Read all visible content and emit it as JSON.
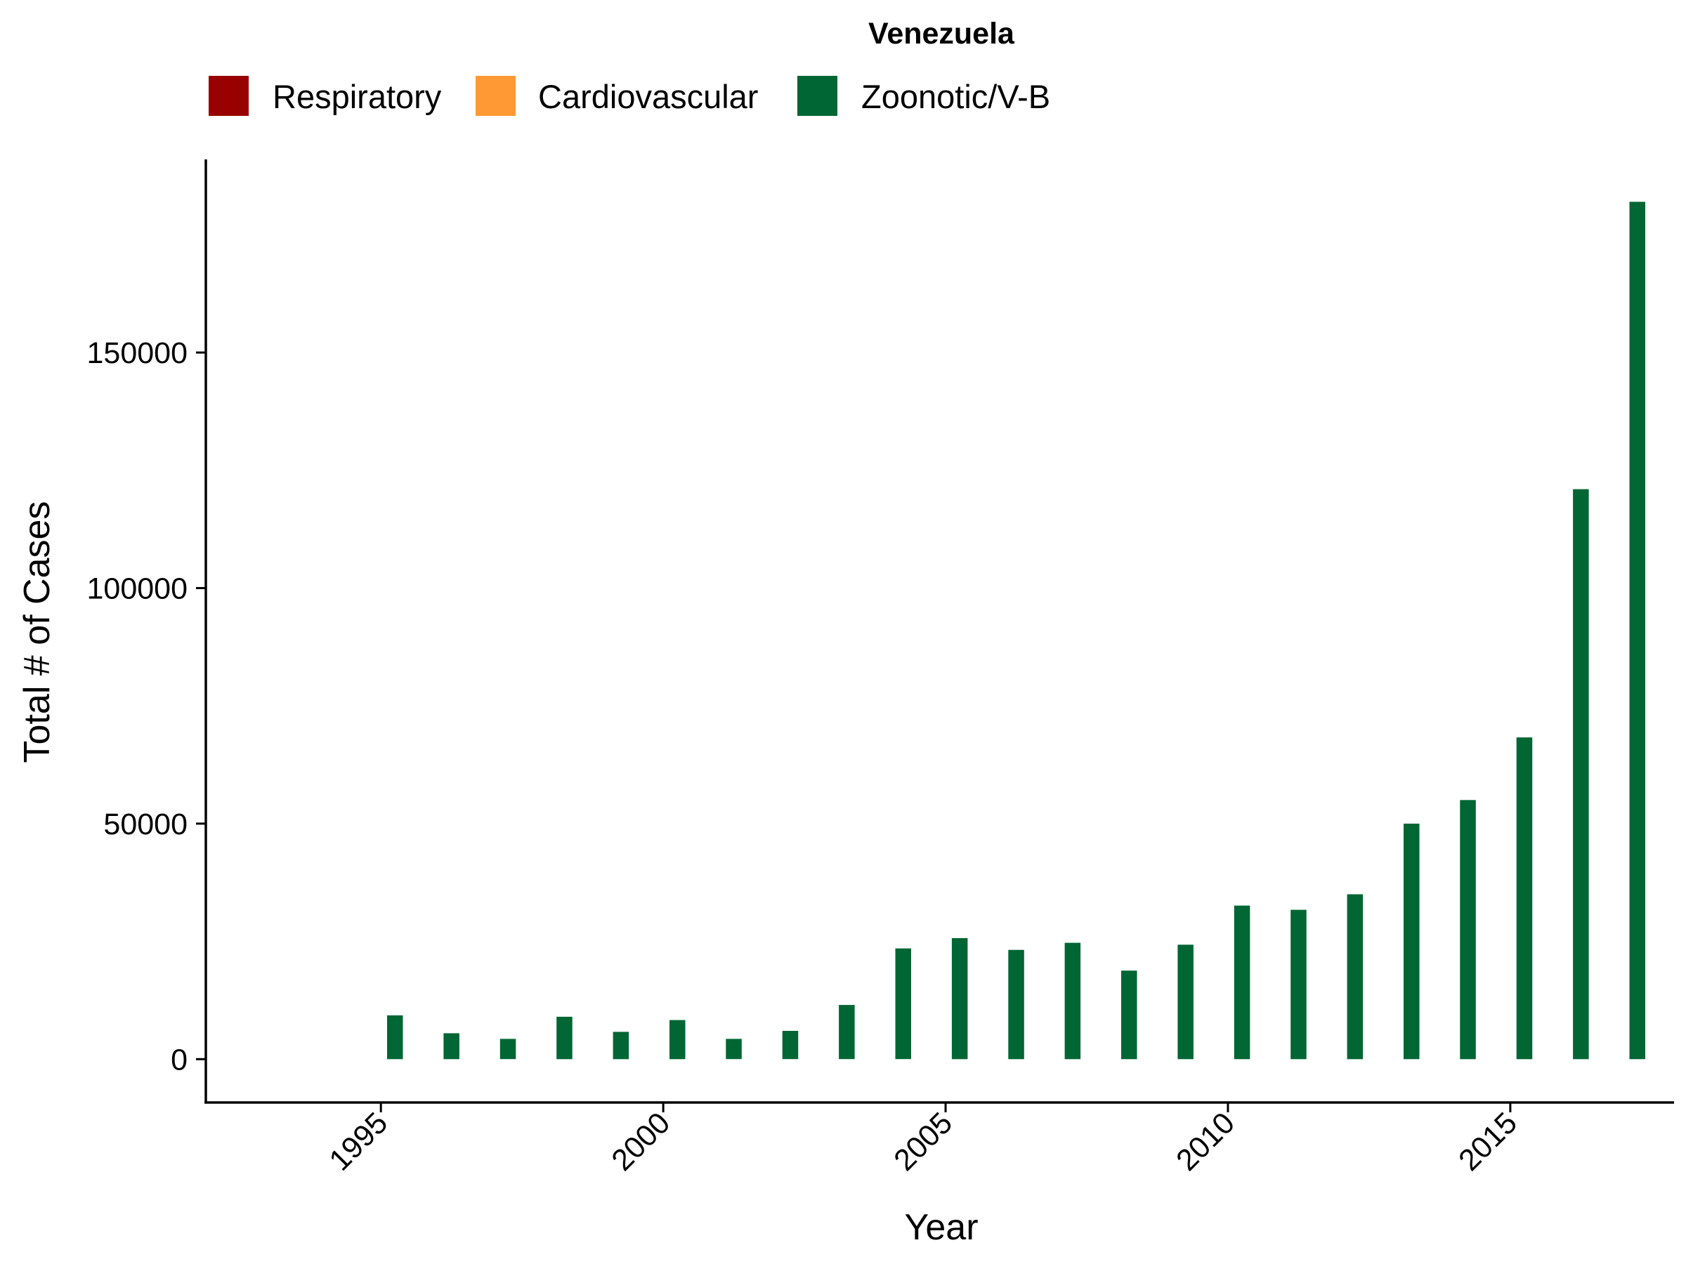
{
  "chart_data": {
    "type": "bar",
    "title": "Venezuela",
    "xlabel": "Year",
    "ylabel": "Total # of Cases",
    "legend_position": "top",
    "legend": [
      {
        "name": "Respiratory",
        "color": "#990000"
      },
      {
        "name": "Cardiovascular",
        "color": "#FF9933"
      },
      {
        "name": "Zoonotic/V-B",
        "color": "#006633"
      }
    ],
    "xlim": [
      1991.9,
      2017.9
    ],
    "ylim": [
      -9200,
      191000
    ],
    "xticks": [
      1995,
      2000,
      2005,
      2010,
      2015
    ],
    "yticks": [
      0,
      50000,
      100000,
      150000
    ],
    "grid": false,
    "series": [
      {
        "name": "Zoonotic/V-B",
        "color": "#006633",
        "x": [
          1995,
          1996,
          1997,
          1998,
          1999,
          2000,
          2001,
          2002,
          2003,
          2004,
          2005,
          2006,
          2007,
          2008,
          2009,
          2010,
          2011,
          2012,
          2013,
          2014,
          2015,
          2016,
          2017
        ],
        "values": [
          9300,
          5500,
          4300,
          9000,
          5800,
          8300,
          4300,
          6000,
          11500,
          23500,
          25700,
          23200,
          24700,
          18800,
          24300,
          32600,
          31700,
          35000,
          50000,
          55000,
          68300,
          121000,
          182000
        ]
      }
    ]
  }
}
